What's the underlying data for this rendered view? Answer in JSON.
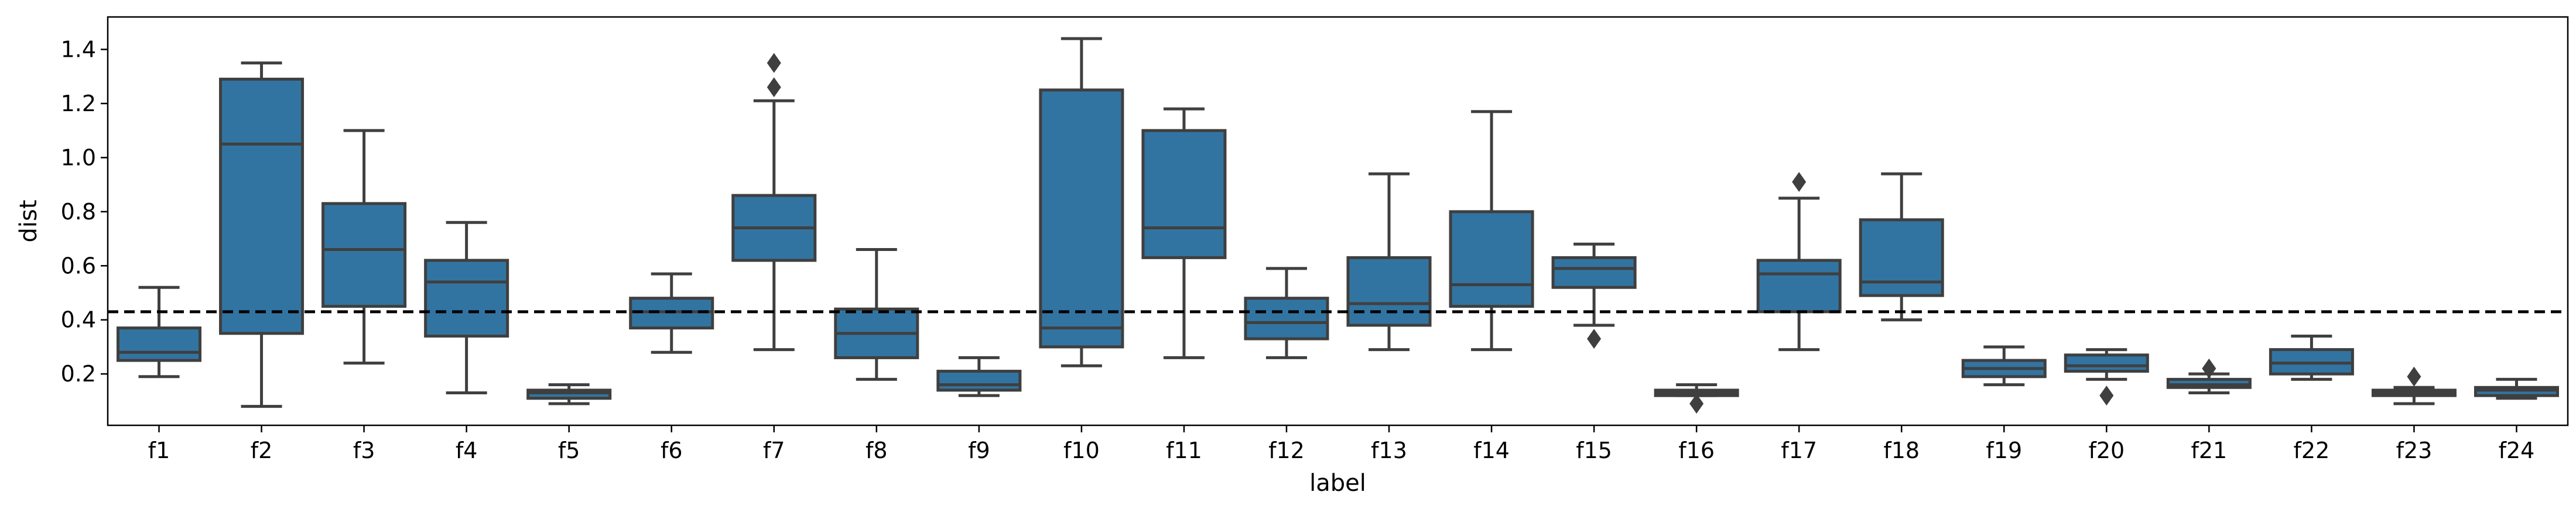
{
  "chart_data": {
    "type": "box",
    "xlabel": "label",
    "ylabel": "dist",
    "ylim": [
      0.01,
      1.52
    ],
    "yticks": [
      "0.2",
      "0.4",
      "0.6",
      "0.8",
      "1.0",
      "1.2",
      "1.4"
    ],
    "reference_line": {
      "y": 0.43,
      "style": "dashed",
      "color": "#000000"
    },
    "box_color": "#3274a1",
    "edge_color": "#3f3f3f",
    "categories": [
      {
        "label": "f1",
        "whislo": 0.19,
        "q1": 0.25,
        "med": 0.28,
        "q3": 0.37,
        "whishi": 0.52,
        "fliers": []
      },
      {
        "label": "f2",
        "whislo": 0.08,
        "q1": 0.35,
        "med": 1.05,
        "q3": 1.29,
        "whishi": 1.35,
        "fliers": []
      },
      {
        "label": "f3",
        "whislo": 0.24,
        "q1": 0.45,
        "med": 0.66,
        "q3": 0.83,
        "whishi": 1.1,
        "fliers": []
      },
      {
        "label": "f4",
        "whislo": 0.13,
        "q1": 0.34,
        "med": 0.54,
        "q3": 0.62,
        "whishi": 0.76,
        "fliers": []
      },
      {
        "label": "f5",
        "whislo": 0.09,
        "q1": 0.11,
        "med": 0.13,
        "q3": 0.14,
        "whishi": 0.16,
        "fliers": []
      },
      {
        "label": "f6",
        "whislo": 0.28,
        "q1": 0.37,
        "med": 0.43,
        "q3": 0.48,
        "whishi": 0.57,
        "fliers": []
      },
      {
        "label": "f7",
        "whislo": 0.29,
        "q1": 0.62,
        "med": 0.74,
        "q3": 0.86,
        "whishi": 1.21,
        "fliers": [
          1.26,
          1.35
        ]
      },
      {
        "label": "f8",
        "whislo": 0.18,
        "q1": 0.26,
        "med": 0.35,
        "q3": 0.44,
        "whishi": 0.66,
        "fliers": []
      },
      {
        "label": "f9",
        "whislo": 0.12,
        "q1": 0.14,
        "med": 0.16,
        "q3": 0.21,
        "whishi": 0.26,
        "fliers": []
      },
      {
        "label": "f10",
        "whislo": 0.23,
        "q1": 0.3,
        "med": 0.37,
        "q3": 1.25,
        "whishi": 1.44,
        "fliers": []
      },
      {
        "label": "f11",
        "whislo": 0.26,
        "q1": 0.63,
        "med": 0.74,
        "q3": 1.1,
        "whishi": 1.18,
        "fliers": []
      },
      {
        "label": "f12",
        "whislo": 0.26,
        "q1": 0.33,
        "med": 0.39,
        "q3": 0.48,
        "whishi": 0.59,
        "fliers": []
      },
      {
        "label": "f13",
        "whislo": 0.29,
        "q1": 0.38,
        "med": 0.46,
        "q3": 0.63,
        "whishi": 0.94,
        "fliers": []
      },
      {
        "label": "f14",
        "whislo": 0.29,
        "q1": 0.45,
        "med": 0.53,
        "q3": 0.8,
        "whishi": 1.17,
        "fliers": []
      },
      {
        "label": "f15",
        "whislo": 0.38,
        "q1": 0.52,
        "med": 0.59,
        "q3": 0.63,
        "whishi": 0.68,
        "fliers": [
          0.33
        ]
      },
      {
        "label": "f16",
        "whislo": 0.12,
        "q1": 0.12,
        "med": 0.13,
        "q3": 0.14,
        "whishi": 0.16,
        "fliers": [
          0.09
        ]
      },
      {
        "label": "f17",
        "whislo": 0.29,
        "q1": 0.43,
        "med": 0.57,
        "q3": 0.62,
        "whishi": 0.85,
        "fliers": [
          0.91
        ]
      },
      {
        "label": "f18",
        "whislo": 0.4,
        "q1": 0.49,
        "med": 0.54,
        "q3": 0.77,
        "whishi": 0.94,
        "fliers": []
      },
      {
        "label": "f19",
        "whislo": 0.16,
        "q1": 0.19,
        "med": 0.22,
        "q3": 0.25,
        "whishi": 0.3,
        "fliers": []
      },
      {
        "label": "f20",
        "whislo": 0.18,
        "q1": 0.21,
        "med": 0.23,
        "q3": 0.27,
        "whishi": 0.29,
        "fliers": [
          0.12
        ]
      },
      {
        "label": "f21",
        "whislo": 0.13,
        "q1": 0.15,
        "med": 0.16,
        "q3": 0.18,
        "whishi": 0.2,
        "fliers": [
          0.22
        ]
      },
      {
        "label": "f22",
        "whislo": 0.18,
        "q1": 0.2,
        "med": 0.24,
        "q3": 0.29,
        "whishi": 0.34,
        "fliers": []
      },
      {
        "label": "f23",
        "whislo": 0.09,
        "q1": 0.12,
        "med": 0.13,
        "q3": 0.14,
        "whishi": 0.15,
        "fliers": [
          0.19
        ]
      },
      {
        "label": "f24",
        "whislo": 0.11,
        "q1": 0.12,
        "med": 0.14,
        "q3": 0.15,
        "whishi": 0.18,
        "fliers": []
      }
    ]
  }
}
